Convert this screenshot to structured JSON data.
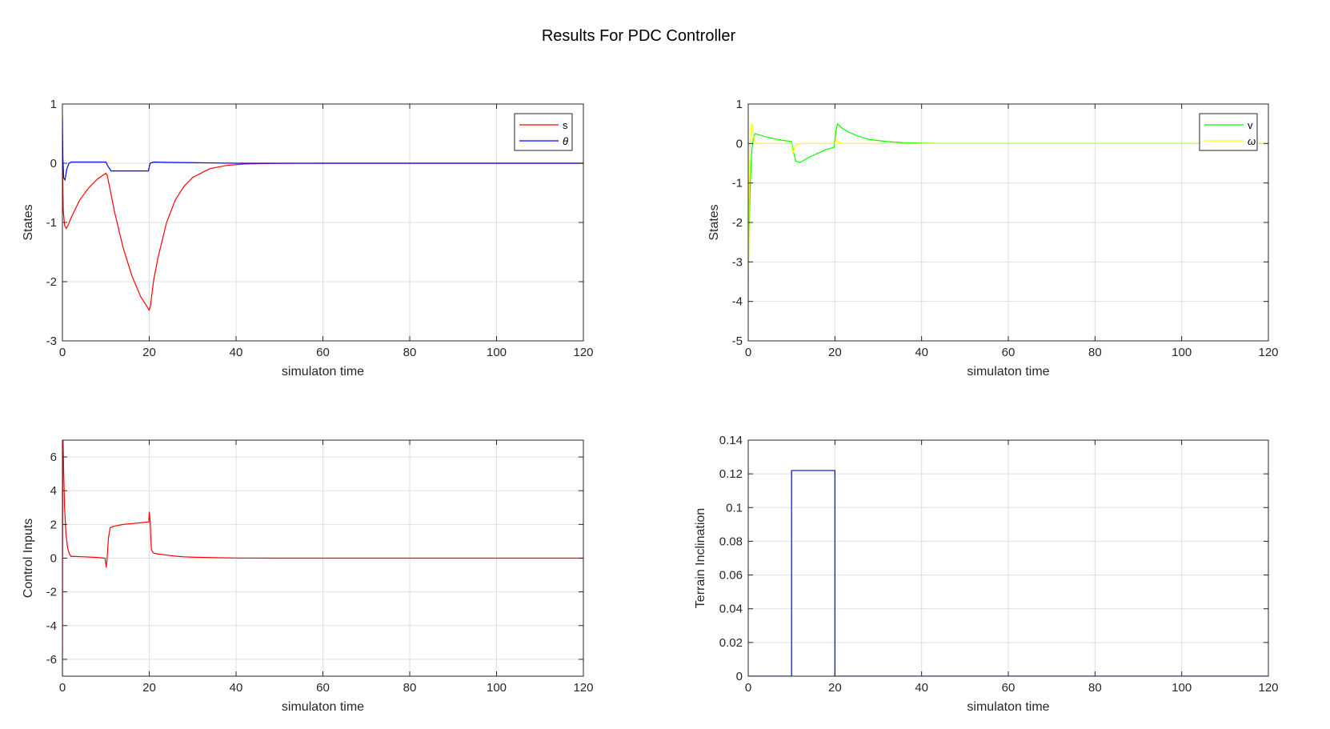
{
  "figure_title": "Results For PDC Controller",
  "colors": {
    "background": "#ffffff",
    "axes": "#262626",
    "grid": "#dfdfdf"
  },
  "chart_data": [
    {
      "type": "line",
      "xlabel": "simulaton time",
      "ylabel": "States",
      "xlim": [
        0,
        120
      ],
      "ylim": [
        -3,
        1
      ],
      "xticks": [
        0,
        20,
        40,
        60,
        80,
        100,
        120
      ],
      "yticks": [
        -3,
        -2,
        -1,
        0,
        1
      ],
      "ytick_labels": [
        "-3",
        "-2",
        "-1",
        "0",
        "1"
      ],
      "grid": true,
      "legend": "top-right",
      "series": [
        {
          "name": "s",
          "color": "#ff0000",
          "x": [
            0,
            0.2,
            0.5,
            0.9,
            1.3,
            2,
            4,
            6,
            8,
            10,
            10.3,
            11,
            12,
            14,
            16,
            18,
            20,
            20.3,
            21,
            22,
            24,
            26,
            28,
            30,
            34,
            38,
            42,
            46,
            50,
            55,
            60,
            80,
            100,
            120
          ],
          "y": [
            0,
            -0.8,
            -1.05,
            -1.1,
            -1.05,
            -0.92,
            -0.62,
            -0.42,
            -0.27,
            -0.17,
            -0.2,
            -0.45,
            -0.82,
            -1.43,
            -1.9,
            -2.25,
            -2.48,
            -2.4,
            -1.98,
            -1.6,
            -1.0,
            -0.62,
            -0.39,
            -0.24,
            -0.09,
            -0.035,
            -0.013,
            -0.005,
            -0.002,
            -0.001,
            0,
            0,
            0,
            0
          ]
        },
        {
          "name": "θ",
          "color": "#0000ff",
          "x": [
            0,
            0.1,
            0.3,
            0.6,
            1.0,
            1.5,
            2,
            3,
            5,
            10,
            10.5,
            11.2,
            15,
            19.8,
            20.2,
            21,
            24,
            30,
            40,
            120
          ],
          "y": [
            0.8,
            0.1,
            -0.25,
            -0.28,
            -0.1,
            0.0,
            0.02,
            0.02,
            0.02,
            0.02,
            -0.05,
            -0.13,
            -0.13,
            -0.13,
            0.0,
            0.02,
            0.015,
            0.01,
            0.0,
            0.0
          ]
        }
      ]
    },
    {
      "type": "line",
      "xlabel": "simulaton time",
      "ylabel": "States",
      "xlim": [
        0,
        120
      ],
      "ylim": [
        -5,
        1
      ],
      "xticks": [
        0,
        20,
        40,
        60,
        80,
        100,
        120
      ],
      "yticks": [
        -5,
        -4,
        -3,
        -2,
        -1,
        0,
        1
      ],
      "ytick_labels": [
        "-5",
        "-4",
        "-3",
        "-2",
        "-1",
        "0",
        "1"
      ],
      "grid": true,
      "legend": "top-right",
      "series": [
        {
          "name": "v",
          "color": "#00ff00",
          "x": [
            0,
            0.2,
            0.5,
            0.8,
            1.2,
            1.6,
            2.5,
            4,
            6,
            8,
            10,
            10.4,
            11,
            12,
            14,
            16,
            18,
            19.8,
            20.2,
            20.6,
            21.5,
            23,
            25,
            28,
            32,
            36,
            40,
            45,
            50,
            60,
            120
          ],
          "y": [
            -3.5,
            -2.2,
            -1.0,
            -0.2,
            0.15,
            0.25,
            0.22,
            0.17,
            0.12,
            0.08,
            0.05,
            -0.2,
            -0.45,
            -0.48,
            -0.35,
            -0.25,
            -0.15,
            -0.1,
            0.3,
            0.5,
            0.4,
            0.3,
            0.2,
            0.1,
            0.05,
            0.02,
            0.01,
            0.0,
            0.0,
            0.0,
            0.0
          ]
        },
        {
          "name": "ω",
          "color": "#ffff00",
          "x": [
            0,
            0.1,
            0.2,
            0.4,
            0.6,
            0.8,
            1.0,
            1.2,
            1.5,
            2,
            3,
            10,
            10.3,
            10.8,
            12,
            20,
            20.3,
            20.8,
            22,
            120
          ],
          "y": [
            -4.0,
            -3.0,
            -1.5,
            -0.2,
            0.2,
            0.5,
            0.45,
            0.2,
            0.05,
            0.0,
            0.0,
            0.0,
            -0.25,
            -0.05,
            0.0,
            0.0,
            0.1,
            0.02,
            0.0,
            0.0
          ]
        }
      ]
    },
    {
      "type": "line",
      "xlabel": "simulaton time",
      "ylabel": "Control Inputs",
      "xlim": [
        0,
        120
      ],
      "ylim": [
        -7,
        7
      ],
      "xticks": [
        0,
        20,
        40,
        60,
        80,
        100,
        120
      ],
      "yticks": [
        -6,
        -4,
        -2,
        0,
        2,
        4,
        6
      ],
      "ytick_labels": [
        "-6",
        "-4",
        "-2",
        "0",
        "2",
        "4",
        "6"
      ],
      "grid": true,
      "legend": "none",
      "series": [
        {
          "name": "",
          "color": "#ff0000",
          "x": [
            0,
            0.03,
            0.08,
            0.15,
            0.3,
            0.5,
            0.8,
            1.2,
            1.6,
            2.0,
            3,
            5,
            8,
            9.8,
            10.1,
            10.3,
            10.6,
            11.0,
            12,
            14,
            16,
            18,
            19.9,
            20.0,
            20.2,
            20.5,
            21,
            22,
            24,
            26,
            28,
            30,
            35,
            40,
            50,
            60,
            120
          ],
          "y": [
            -7.0,
            0.0,
            7.0,
            7.0,
            5.0,
            3.0,
            1.5,
            0.6,
            0.25,
            0.1,
            0.1,
            0.08,
            0.04,
            0.0,
            -0.55,
            0.0,
            1.2,
            1.8,
            1.9,
            2.0,
            2.05,
            2.1,
            2.15,
            2.75,
            2.2,
            0.5,
            0.3,
            0.25,
            0.18,
            0.12,
            0.08,
            0.06,
            0.03,
            0.01,
            0.0,
            0.0,
            0.0
          ]
        }
      ]
    },
    {
      "type": "line",
      "xlabel": "simulaton time",
      "ylabel": "Terrain Inclination",
      "xlim": [
        0,
        120
      ],
      "ylim": [
        0,
        0.14
      ],
      "xticks": [
        0,
        20,
        40,
        60,
        80,
        100,
        120
      ],
      "yticks": [
        0,
        0.02,
        0.04,
        0.06,
        0.08,
        0.1,
        0.12,
        0.14
      ],
      "ytick_labels": [
        "0",
        "0.02",
        "0.04",
        "0.06",
        "0.08",
        "0.1",
        "0.12",
        "0.14"
      ],
      "grid": true,
      "legend": "none",
      "series": [
        {
          "name": "",
          "color": "#0000ff",
          "x": [
            0,
            10,
            10,
            20,
            20,
            120
          ],
          "y": [
            0,
            0,
            0.122,
            0.122,
            0,
            0
          ]
        }
      ]
    }
  ]
}
